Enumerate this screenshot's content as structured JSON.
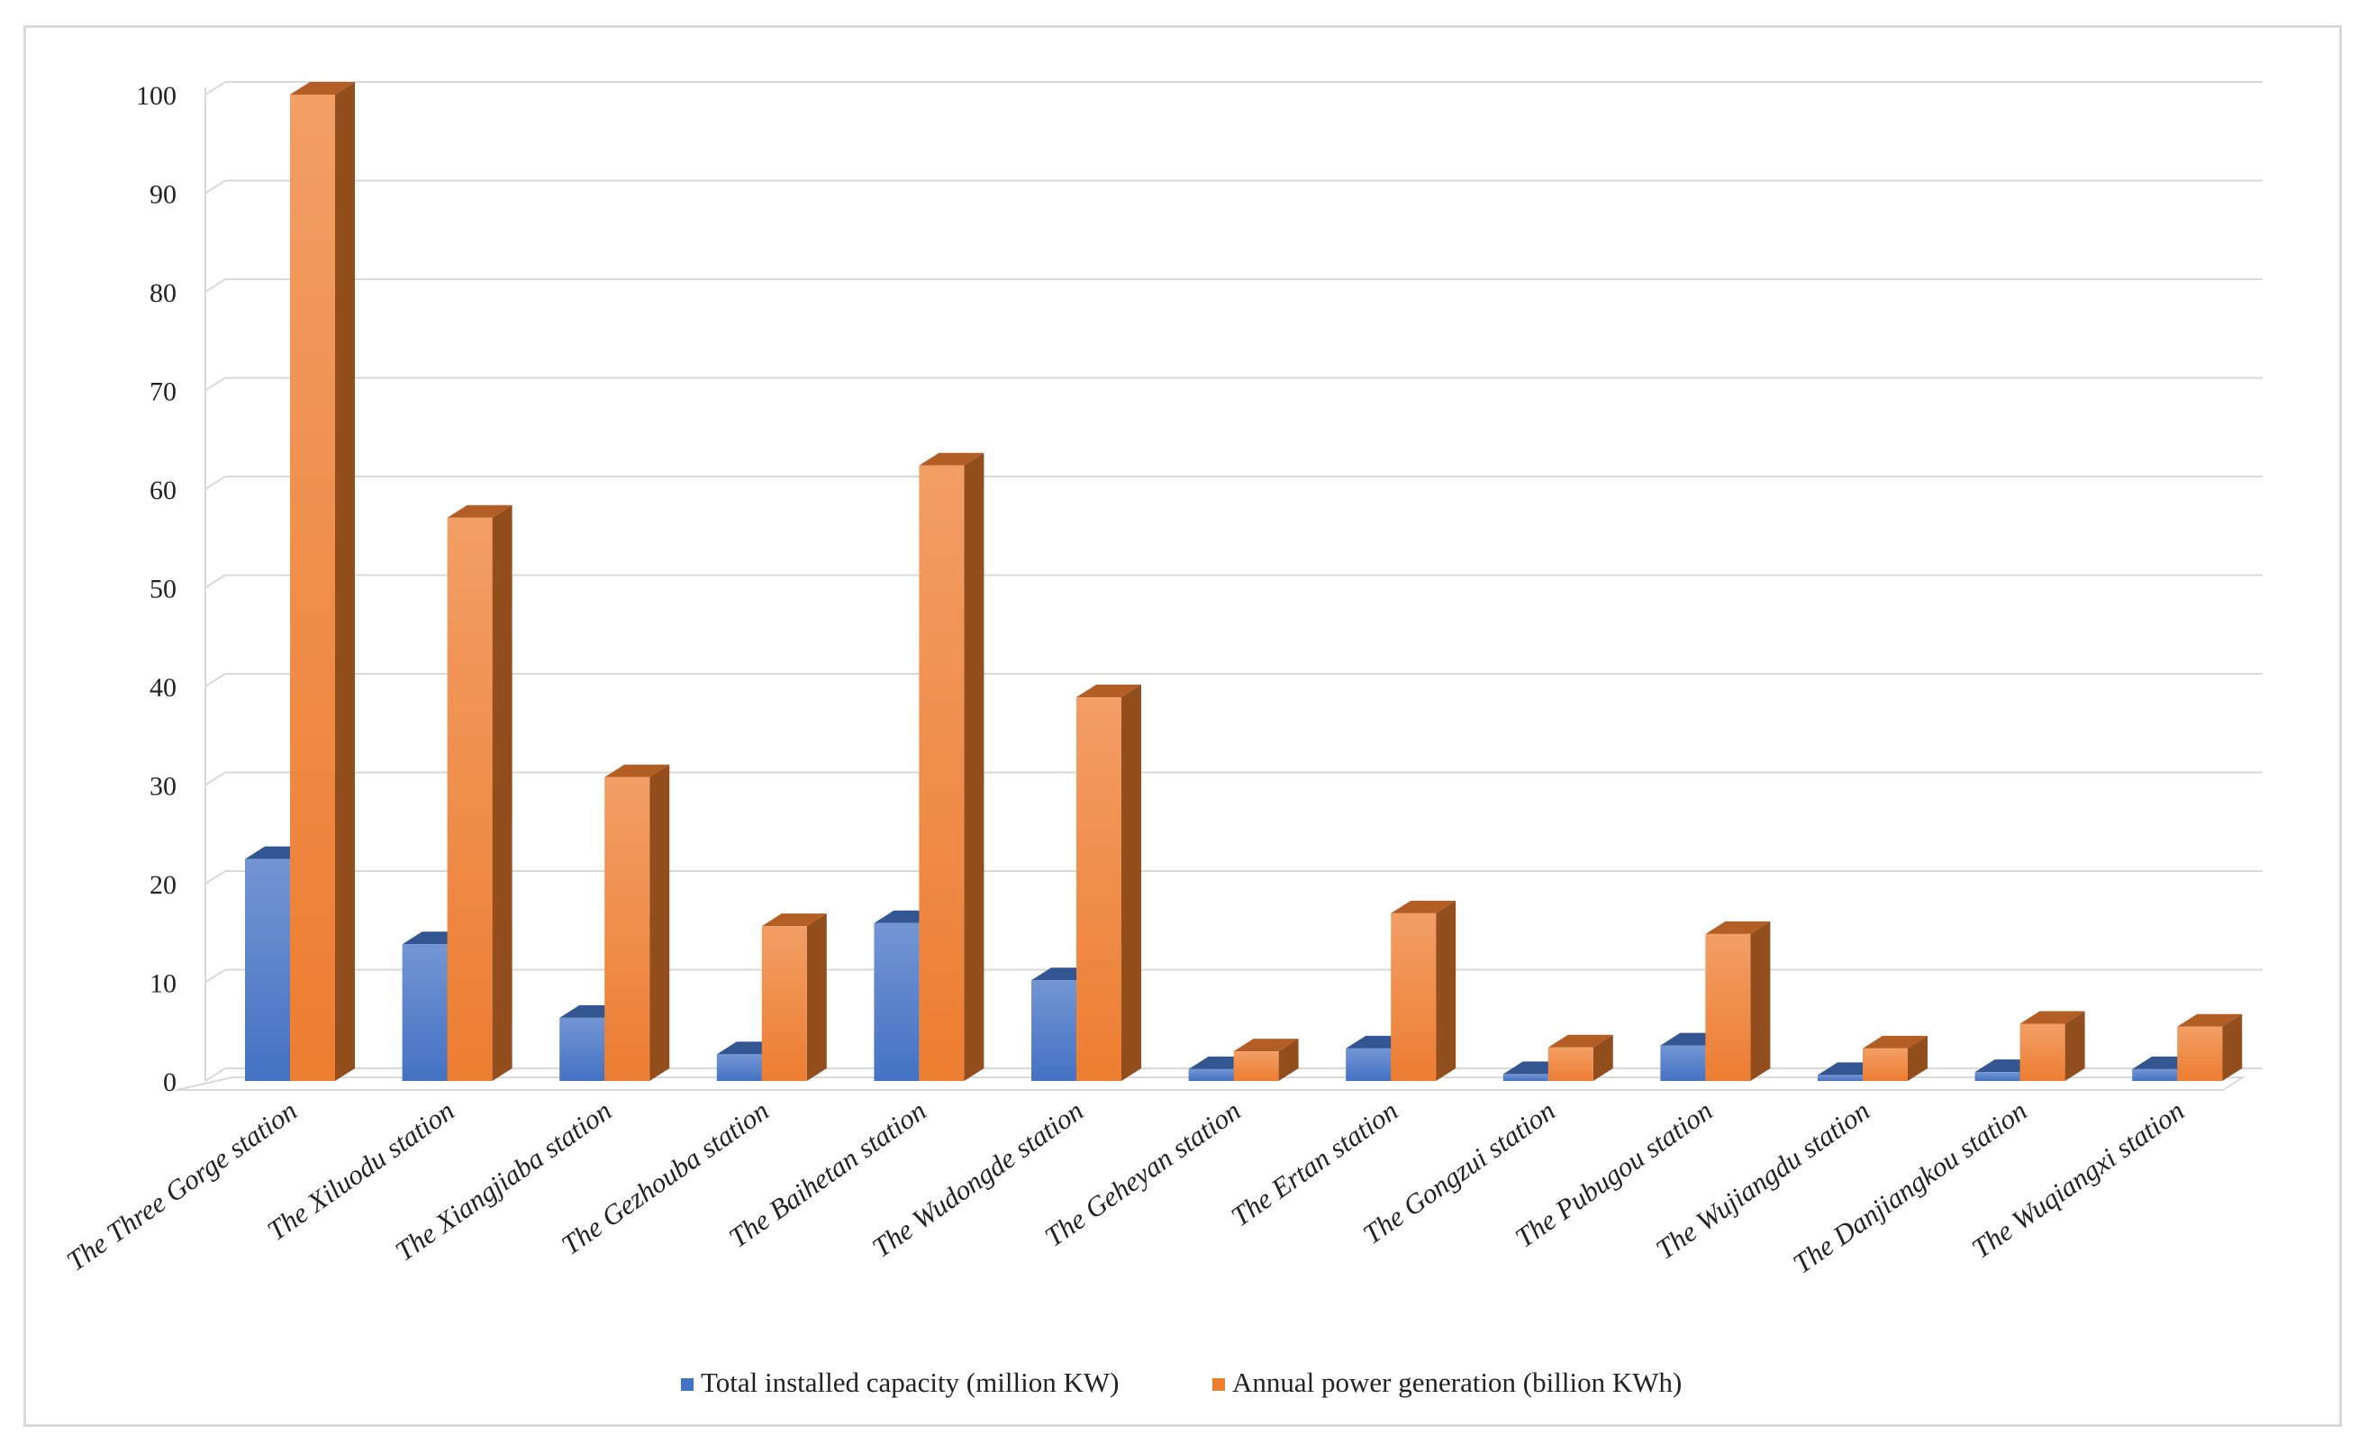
{
  "chart_data": {
    "type": "bar",
    "style": "3d-clustered-column",
    "title": "",
    "xlabel": "",
    "ylabel": "",
    "ylim": [
      0,
      100
    ],
    "yticks": [
      0,
      10,
      20,
      30,
      40,
      50,
      60,
      70,
      80,
      90,
      100
    ],
    "grid": true,
    "legend_position": "bottom",
    "categories": [
      "The Three Gorge station",
      "The Xiluodu station",
      "The Xiangjiaba station",
      "The Gezhouba station",
      "The Baihetan station",
      "The Wudongde station",
      "The Geheyan station",
      "The Ertan station",
      "The Gongzui station",
      "The Pubugou station",
      "The Wujiangdu station",
      "The Danjiangkou station",
      "The Wuqiangxi station"
    ],
    "series": [
      {
        "name": "Total installed capacity (million KW)",
        "color": "#4472c4",
        "values": [
          22.5,
          13.86,
          6.4,
          2.7,
          16.0,
          10.2,
          1.2,
          3.3,
          0.7,
          3.6,
          0.6,
          0.9,
          1.2
        ]
      },
      {
        "name": "Annual power generation (billion KWh)",
        "color": "#ed7d31",
        "values": [
          100,
          57.1,
          30.8,
          15.7,
          62.4,
          38.9,
          3.0,
          17.0,
          3.4,
          14.9,
          3.3,
          5.8,
          5.5
        ]
      }
    ]
  },
  "colors": {
    "grid": "#d9d9d9",
    "frame": "#d9d9d9",
    "text": "#222222"
  }
}
